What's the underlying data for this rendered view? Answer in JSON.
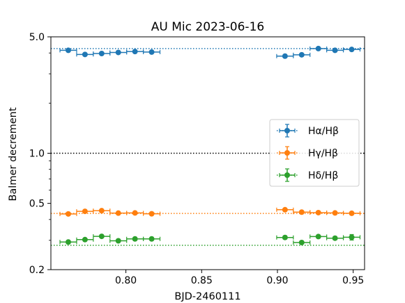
{
  "chart_data": {
    "type": "scatter",
    "title": "AU Mic 2023-06-16",
    "xlabel": "BJD-2460111",
    "ylabel": "Balmer decrement",
    "xlim": [
      0.7505,
      0.9575
    ],
    "ylim": [
      0.2,
      5.0
    ],
    "yscale": "log",
    "xticks": [
      "0.80",
      "0.85",
      "0.90",
      "0.95"
    ],
    "yticks": [
      "0.2",
      "0.5",
      "1.0",
      "5.0"
    ],
    "grid": false,
    "legend_position": "center-right",
    "series": [
      {
        "name": "Hα/Hβ",
        "color": "#1f77b4",
        "x": [
          0.762,
          0.773,
          0.784,
          0.795,
          0.806,
          0.817,
          0.905,
          0.916,
          0.927,
          0.938,
          0.949
        ],
        "y": [
          4.15,
          3.92,
          3.97,
          4.03,
          4.08,
          4.05,
          3.83,
          3.9,
          4.25,
          4.15,
          4.2
        ],
        "xerr": [
          0.0055,
          0.0055,
          0.0055,
          0.0055,
          0.0055,
          0.0055,
          0.0055,
          0.0055,
          0.0055,
          0.0055,
          0.0055
        ],
        "reference_line": 4.25
      },
      {
        "name": "Hγ/Hβ",
        "color": "#ff7f0e",
        "x": [
          0.762,
          0.773,
          0.784,
          0.795,
          0.806,
          0.817,
          0.905,
          0.916,
          0.927,
          0.938,
          0.949
        ],
        "y": [
          0.432,
          0.448,
          0.452,
          0.437,
          0.438,
          0.433,
          0.458,
          0.443,
          0.44,
          0.438,
          0.436
        ],
        "xerr": [
          0.0055,
          0.0055,
          0.0055,
          0.0055,
          0.0055,
          0.0055,
          0.0055,
          0.0055,
          0.0055,
          0.0055,
          0.0055
        ],
        "reference_line": 0.435
      },
      {
        "name": "Hδ/Hβ",
        "color": "#2ca02c",
        "x": [
          0.762,
          0.773,
          0.784,
          0.795,
          0.806,
          0.817,
          0.905,
          0.916,
          0.927,
          0.938,
          0.949
        ],
        "y": [
          0.293,
          0.303,
          0.317,
          0.298,
          0.306,
          0.306,
          0.312,
          0.291,
          0.316,
          0.309,
          0.313
        ],
        "xerr": [
          0.0055,
          0.0055,
          0.0055,
          0.0055,
          0.0055,
          0.0055,
          0.0055,
          0.0055,
          0.0055,
          0.0055,
          0.0055
        ],
        "yerr": [
          0.004,
          0.004,
          0.005,
          0.004,
          0.004,
          0.004,
          0.007,
          0.005,
          0.006,
          0.007,
          0.012
        ],
        "reference_line": 0.28
      }
    ],
    "hline": {
      "y": 1.0,
      "color": "#000000",
      "style": "dotted"
    }
  }
}
